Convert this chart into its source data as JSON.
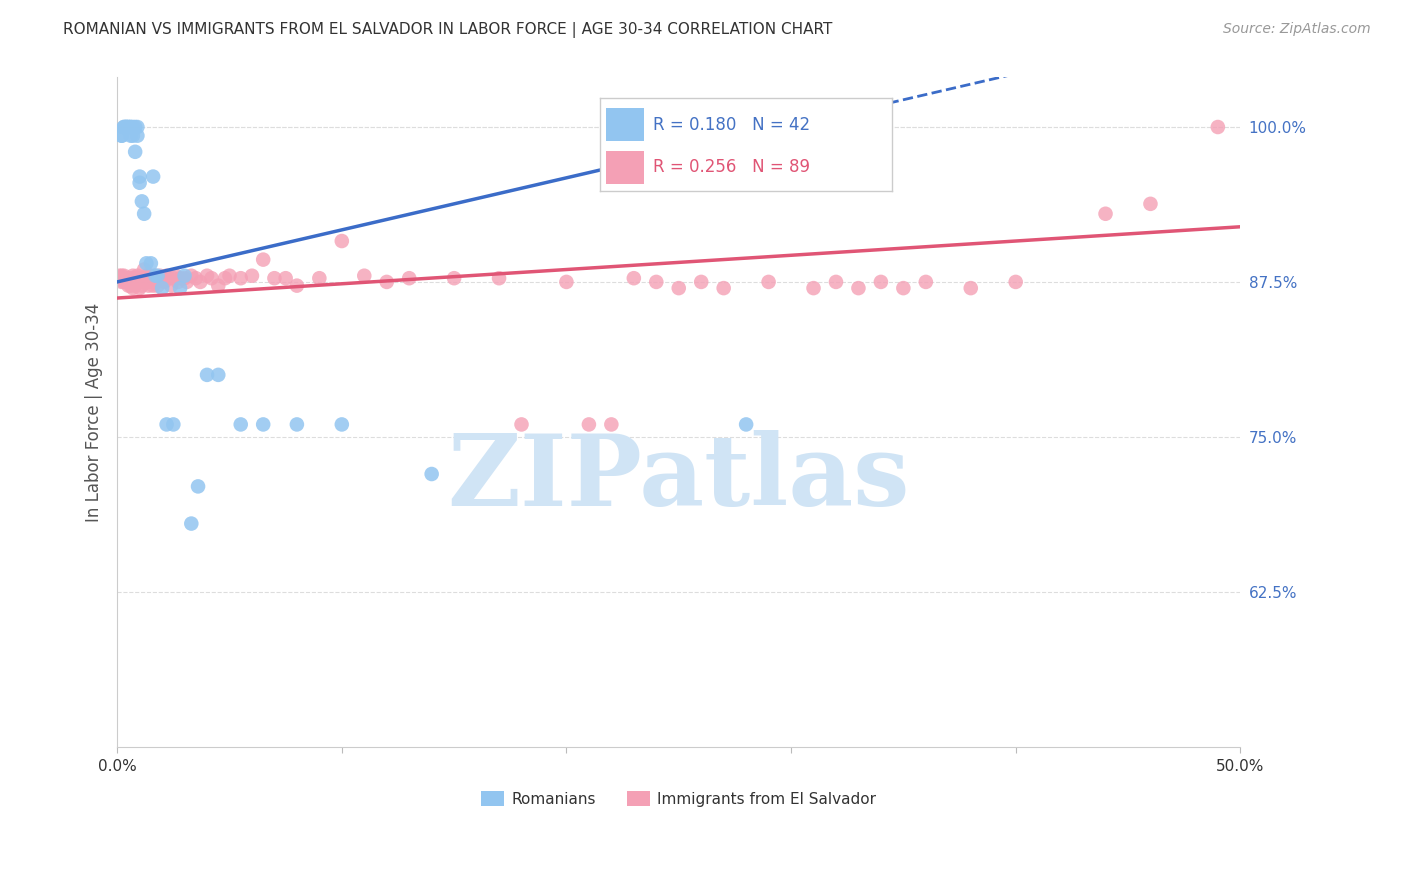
{
  "title": "ROMANIAN VS IMMIGRANTS FROM EL SALVADOR IN LABOR FORCE | AGE 30-34 CORRELATION CHART",
  "source": "Source: ZipAtlas.com",
  "ylabel": "In Labor Force | Age 30-34",
  "xlim": [
    0.0,
    0.5
  ],
  "ylim": [
    0.5,
    1.04
  ],
  "ytick_positions": [
    0.625,
    0.75,
    0.875,
    1.0
  ],
  "ytick_labels": [
    "62.5%",
    "75.0%",
    "87.5%",
    "100.0%"
  ],
  "legend_blue_R": "0.180",
  "legend_blue_N": "42",
  "legend_pink_R": "0.256",
  "legend_pink_N": "89",
  "blue_color": "#92C5F0",
  "pink_color": "#F4A0B5",
  "trend_blue_color": "#3B6CC8",
  "trend_pink_color": "#E05575",
  "blue_label": "Romanians",
  "pink_label": "Immigrants from El Salvador",
  "blue_scatter_x": [
    0.002,
    0.002,
    0.003,
    0.003,
    0.004,
    0.004,
    0.004,
    0.005,
    0.005,
    0.006,
    0.006,
    0.006,
    0.007,
    0.007,
    0.008,
    0.008,
    0.009,
    0.009,
    0.01,
    0.01,
    0.011,
    0.012,
    0.013,
    0.015,
    0.016,
    0.017,
    0.018,
    0.02,
    0.022,
    0.025,
    0.028,
    0.03,
    0.033,
    0.036,
    0.04,
    0.045,
    0.055,
    0.065,
    0.08,
    0.1,
    0.14,
    0.28
  ],
  "blue_scatter_y": [
    0.993,
    0.993,
    1.0,
    1.0,
    1.0,
    1.0,
    1.0,
    1.0,
    1.0,
    1.0,
    1.0,
    0.993,
    1.0,
    0.993,
    1.0,
    0.98,
    1.0,
    0.993,
    0.955,
    0.96,
    0.94,
    0.93,
    0.89,
    0.89,
    0.96,
    0.88,
    0.88,
    0.87,
    0.76,
    0.76,
    0.87,
    0.88,
    0.68,
    0.71,
    0.8,
    0.8,
    0.76,
    0.76,
    0.76,
    0.76,
    0.72,
    0.76
  ],
  "pink_scatter_x": [
    0.001,
    0.002,
    0.002,
    0.003,
    0.003,
    0.004,
    0.005,
    0.005,
    0.006,
    0.006,
    0.007,
    0.007,
    0.007,
    0.008,
    0.008,
    0.009,
    0.009,
    0.01,
    0.01,
    0.01,
    0.011,
    0.011,
    0.012,
    0.012,
    0.013,
    0.013,
    0.014,
    0.014,
    0.015,
    0.015,
    0.016,
    0.016,
    0.017,
    0.018,
    0.018,
    0.019,
    0.02,
    0.021,
    0.022,
    0.023,
    0.024,
    0.025,
    0.026,
    0.027,
    0.028,
    0.03,
    0.031,
    0.033,
    0.035,
    0.037,
    0.04,
    0.042,
    0.045,
    0.048,
    0.05,
    0.055,
    0.06,
    0.065,
    0.07,
    0.075,
    0.08,
    0.09,
    0.1,
    0.11,
    0.12,
    0.13,
    0.15,
    0.17,
    0.18,
    0.2,
    0.21,
    0.22,
    0.23,
    0.24,
    0.25,
    0.26,
    0.27,
    0.29,
    0.31,
    0.32,
    0.33,
    0.34,
    0.35,
    0.36,
    0.38,
    0.4,
    0.44,
    0.46,
    0.49
  ],
  "pink_scatter_y": [
    0.88,
    0.875,
    0.88,
    0.875,
    0.88,
    0.875,
    0.878,
    0.872,
    0.878,
    0.872,
    0.875,
    0.87,
    0.88,
    0.878,
    0.872,
    0.88,
    0.875,
    0.875,
    0.87,
    0.878,
    0.878,
    0.872,
    0.885,
    0.878,
    0.88,
    0.875,
    0.878,
    0.872,
    0.88,
    0.875,
    0.878,
    0.872,
    0.88,
    0.878,
    0.872,
    0.88,
    0.878,
    0.875,
    0.88,
    0.878,
    0.872,
    0.878,
    0.88,
    0.875,
    0.878,
    0.878,
    0.875,
    0.88,
    0.878,
    0.875,
    0.88,
    0.878,
    0.872,
    0.878,
    0.88,
    0.878,
    0.88,
    0.893,
    0.878,
    0.878,
    0.872,
    0.878,
    0.908,
    0.88,
    0.875,
    0.878,
    0.878,
    0.878,
    0.76,
    0.875,
    0.76,
    0.76,
    0.878,
    0.875,
    0.87,
    0.875,
    0.87,
    0.875,
    0.87,
    0.875,
    0.87,
    0.875,
    0.87,
    0.875,
    0.87,
    0.875,
    0.93,
    0.938,
    1.0
  ],
  "background_color": "#FFFFFF",
  "grid_color": "#DDDDDD",
  "watermark_color": "#D0E4F5",
  "title_color": "#333333",
  "right_tick_color": "#4472C4",
  "source_color": "#999999"
}
